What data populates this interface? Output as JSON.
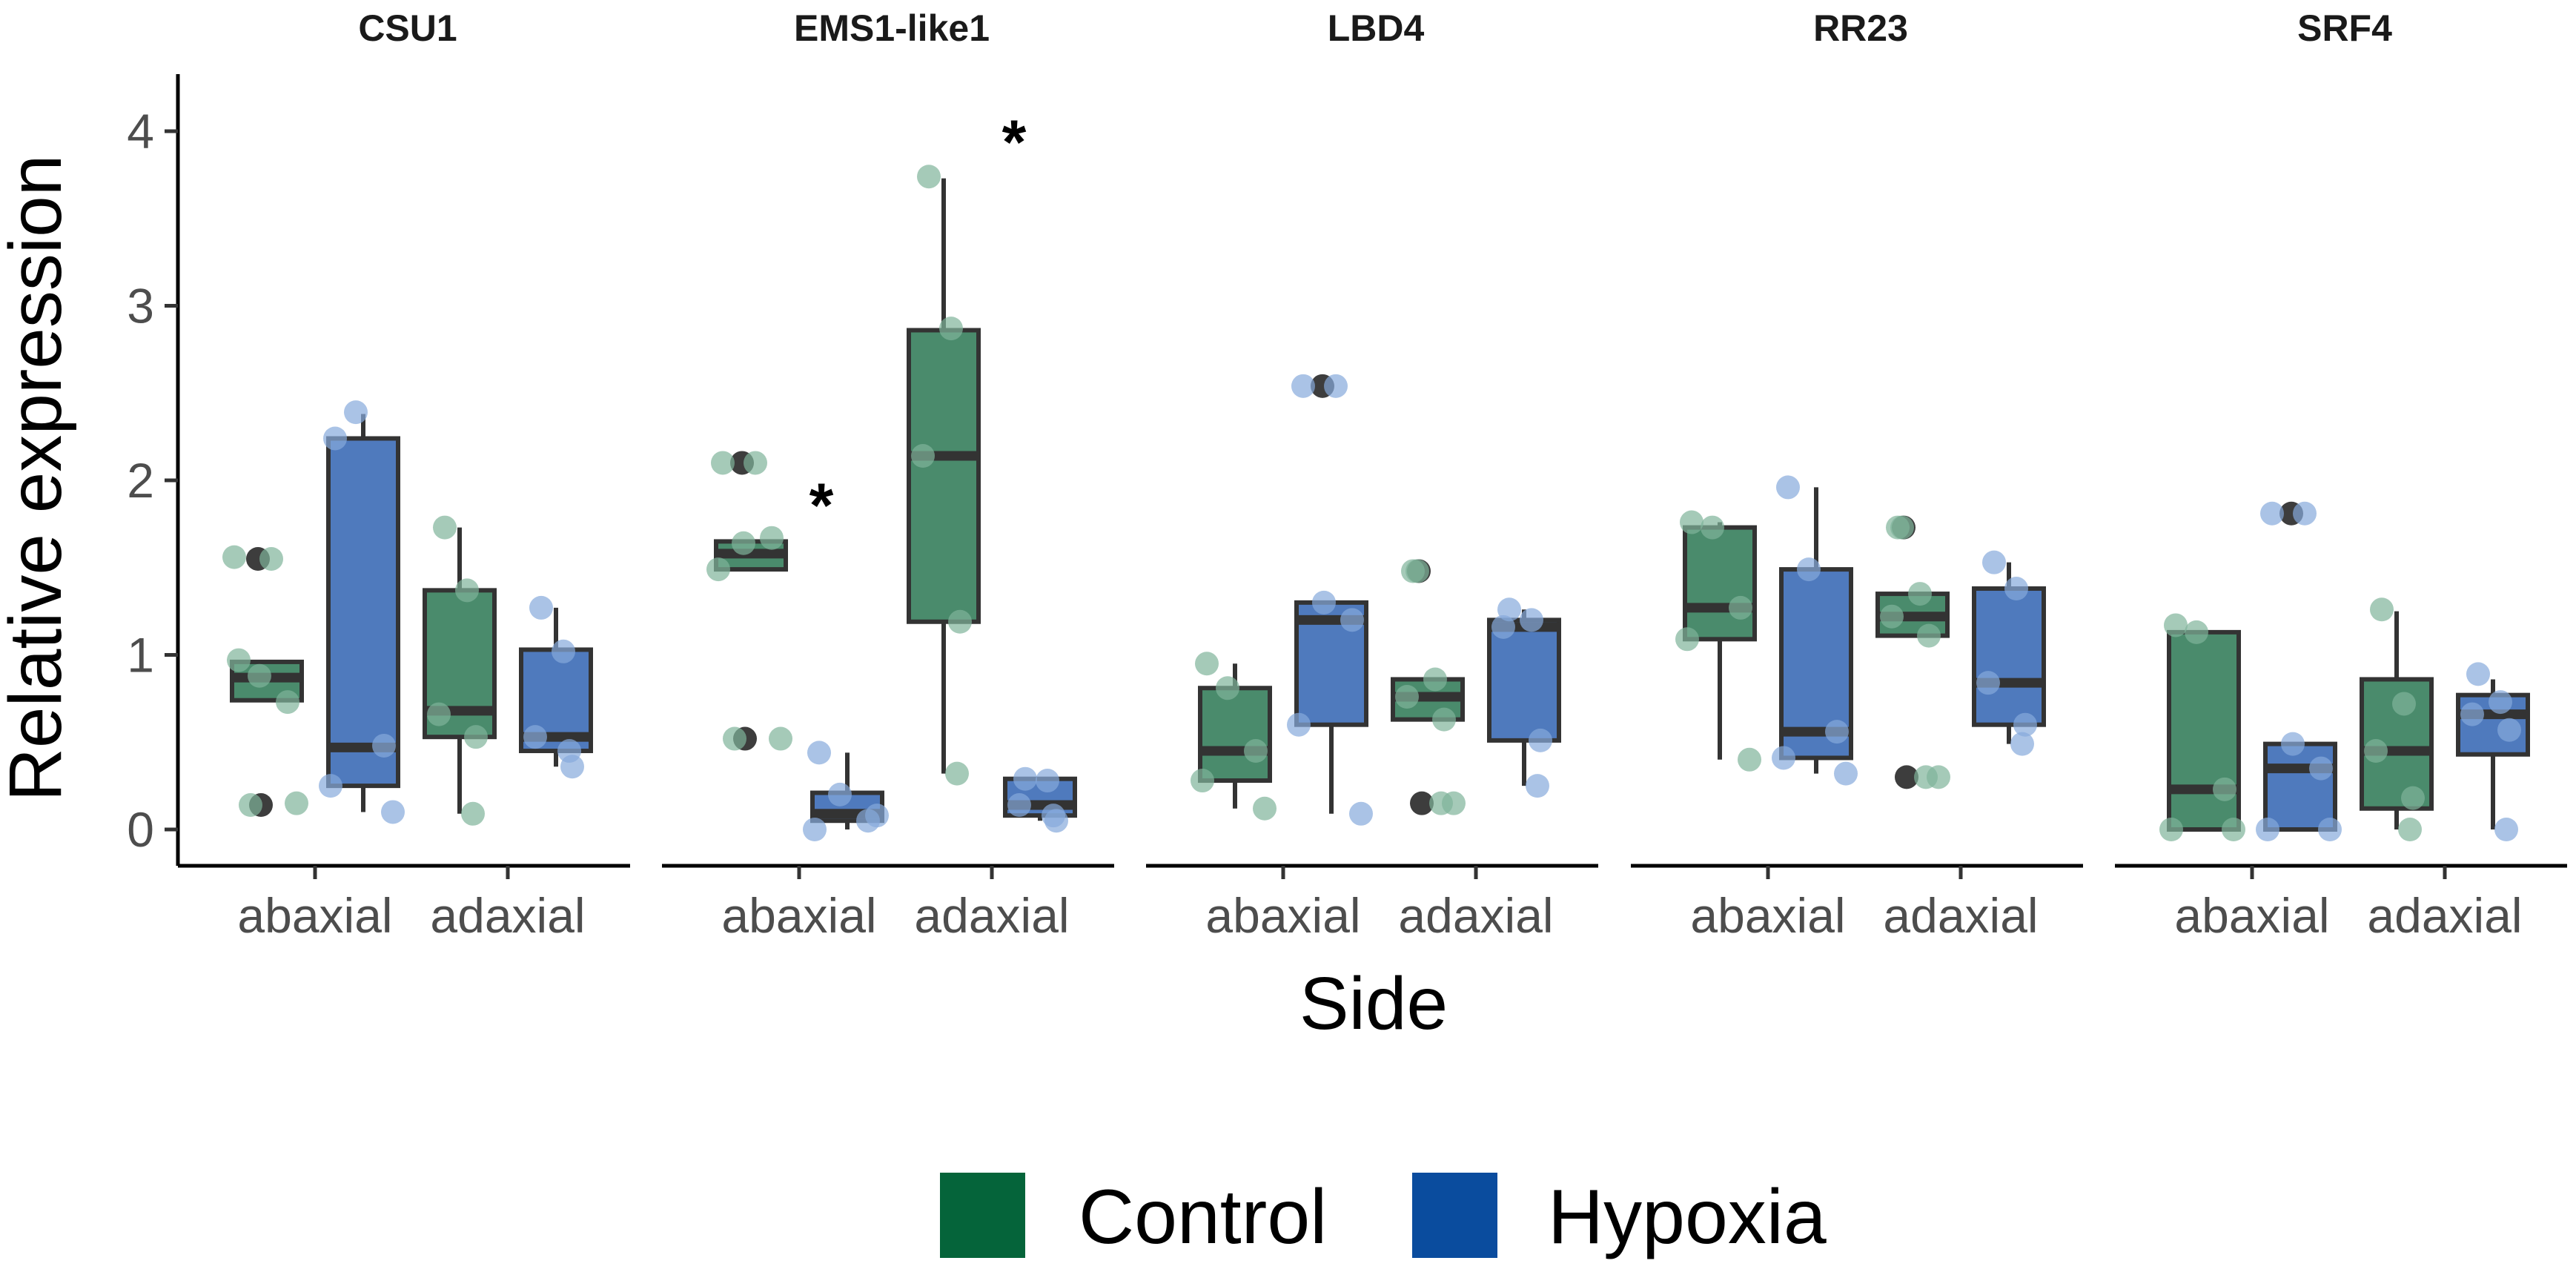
{
  "chart_data": {
    "type": "box",
    "xlabel": "Side",
    "ylabel": "Relative expression",
    "ylim": [
      -0.2,
      4.3
    ],
    "yticks": [
      "0",
      "1",
      "2",
      "3",
      "4"
    ],
    "grid": false,
    "legend": {
      "position": "bottom",
      "entries": [
        {
          "name": "Control",
          "color": "#05643a"
        },
        {
          "name": "Hypoxia",
          "color": "#0a4c9e"
        }
      ]
    },
    "colors": {
      "Control": "#4a8b6c",
      "Hypoxia": "#4f7abd",
      "control_point": "#7fb49a",
      "hypoxia_point": "#86a9dc",
      "outlier": "#333333"
    },
    "facets": [
      {
        "title": "CSU1",
        "groups": [
          {
            "side": "abaxial",
            "treatment": "Control",
            "box": {
              "q1": 0.74,
              "median": 0.87,
              "q3": 0.96,
              "whisker_low": 0.74,
              "whisker_high": 0.96
            },
            "points": [
              0.97,
              0.88,
              0.73,
              1.56,
              0.15,
              1.55,
              0.14
            ],
            "outliers": [
              1.55,
              0.14
            ],
            "annotation": ""
          },
          {
            "side": "abaxial",
            "treatment": "Hypoxia",
            "box": {
              "q1": 0.25,
              "median": 0.47,
              "q3": 2.24,
              "whisker_low": 0.1,
              "whisker_high": 2.38
            },
            "points": [
              2.24,
              2.39,
              0.48,
              0.25,
              0.1
            ],
            "outliers": [],
            "annotation": ""
          },
          {
            "side": "adaxial",
            "treatment": "Control",
            "box": {
              "q1": 0.53,
              "median": 0.68,
              "q3": 1.37,
              "whisker_low": 0.09,
              "whisker_high": 1.73
            },
            "points": [
              1.73,
              1.37,
              0.66,
              0.53,
              0.09
            ],
            "outliers": [],
            "annotation": ""
          },
          {
            "side": "adaxial",
            "treatment": "Hypoxia",
            "box": {
              "q1": 0.45,
              "median": 0.53,
              "q3": 1.03,
              "whisker_low": 0.36,
              "whisker_high": 1.27
            },
            "points": [
              1.27,
              1.02,
              0.53,
              0.36,
              0.45
            ],
            "outliers": [],
            "annotation": ""
          }
        ]
      },
      {
        "title": "EMS1-like1",
        "groups": [
          {
            "side": "abaxial",
            "treatment": "Control",
            "box": {
              "q1": 1.49,
              "median": 1.58,
              "q3": 1.65,
              "whisker_low": 1.49,
              "whisker_high": 1.65
            },
            "points": [
              2.1,
              1.64,
              1.67,
              1.49,
              0.52,
              2.1,
              0.52
            ],
            "outliers": [
              2.1,
              0.52
            ],
            "annotation": "*"
          },
          {
            "side": "abaxial",
            "treatment": "Hypoxia",
            "box": {
              "q1": 0.05,
              "median": 0.09,
              "q3": 0.21,
              "whisker_low": 0.0,
              "whisker_high": 0.44
            },
            "points": [
              0.44,
              0.2,
              0.05,
              0.0,
              0.08
            ],
            "outliers": [],
            "annotation": ""
          },
          {
            "side": "adaxial",
            "treatment": "Control",
            "box": {
              "q1": 1.19,
              "median": 2.14,
              "q3": 2.86,
              "whisker_low": 0.32,
              "whisker_high": 3.73
            },
            "points": [
              3.74,
              2.87,
              2.14,
              1.19,
              0.32
            ],
            "outliers": [],
            "annotation": "*"
          },
          {
            "side": "adaxial",
            "treatment": "Hypoxia",
            "box": {
              "q1": 0.08,
              "median": 0.14,
              "q3": 0.29,
              "whisker_low": 0.05,
              "whisker_high": 0.29
            },
            "points": [
              0.29,
              0.28,
              0.14,
              0.05,
              0.08
            ],
            "outliers": [],
            "annotation": ""
          }
        ]
      },
      {
        "title": "LBD4",
        "groups": [
          {
            "side": "abaxial",
            "treatment": "Control",
            "box": {
              "q1": 0.28,
              "median": 0.45,
              "q3": 0.81,
              "whisker_low": 0.12,
              "whisker_high": 0.95
            },
            "points": [
              0.95,
              0.81,
              0.45,
              0.28,
              0.12
            ],
            "outliers": [],
            "annotation": ""
          },
          {
            "side": "abaxial",
            "treatment": "Hypoxia",
            "box": {
              "q1": 0.6,
              "median": 1.2,
              "q3": 1.3,
              "whisker_low": 0.09,
              "whisker_high": 1.3
            },
            "points": [
              2.54,
              1.3,
              1.2,
              0.6,
              0.09,
              2.54
            ],
            "outliers": [
              2.54
            ],
            "annotation": ""
          },
          {
            "side": "adaxial",
            "treatment": "Control",
            "box": {
              "q1": 0.63,
              "median": 0.76,
              "q3": 0.86,
              "whisker_low": 0.63,
              "whisker_high": 0.86
            },
            "points": [
              1.48,
              0.86,
              0.76,
              0.63,
              0.15,
              1.48,
              0.15
            ],
            "outliers": [
              1.48,
              0.15
            ],
            "annotation": ""
          },
          {
            "side": "adaxial",
            "treatment": "Hypoxia",
            "box": {
              "q1": 0.51,
              "median": 1.16,
              "q3": 1.2,
              "whisker_low": 0.25,
              "whisker_high": 1.26
            },
            "points": [
              1.26,
              1.2,
              1.16,
              0.51,
              0.25
            ],
            "outliers": [],
            "annotation": ""
          }
        ]
      },
      {
        "title": "RR23",
        "groups": [
          {
            "side": "abaxial",
            "treatment": "Control",
            "box": {
              "q1": 1.09,
              "median": 1.27,
              "q3": 1.73,
              "whisker_low": 0.4,
              "whisker_high": 1.76
            },
            "points": [
              1.76,
              1.73,
              1.27,
              1.09,
              0.4
            ],
            "outliers": [],
            "annotation": ""
          },
          {
            "side": "abaxial",
            "treatment": "Hypoxia",
            "box": {
              "q1": 0.41,
              "median": 0.56,
              "q3": 1.49,
              "whisker_low": 0.32,
              "whisker_high": 1.96
            },
            "points": [
              1.96,
              1.49,
              0.56,
              0.41,
              0.32
            ],
            "outliers": [],
            "annotation": ""
          },
          {
            "side": "adaxial",
            "treatment": "Control",
            "box": {
              "q1": 1.11,
              "median": 1.22,
              "q3": 1.35,
              "whisker_low": 1.11,
              "whisker_high": 1.35
            },
            "points": [
              1.73,
              1.35,
              1.22,
              1.11,
              0.3,
              1.73,
              0.3
            ],
            "outliers": [
              1.73,
              0.3
            ],
            "annotation": ""
          },
          {
            "side": "adaxial",
            "treatment": "Hypoxia",
            "box": {
              "q1": 0.6,
              "median": 0.84,
              "q3": 1.38,
              "whisker_low": 0.49,
              "whisker_high": 1.53
            },
            "points": [
              1.53,
              1.38,
              0.84,
              0.6,
              0.49
            ],
            "outliers": [],
            "annotation": ""
          }
        ]
      },
      {
        "title": "SRF4",
        "groups": [
          {
            "side": "abaxial",
            "treatment": "Control",
            "box": {
              "q1": 0.0,
              "median": 0.23,
              "q3": 1.13,
              "whisker_low": 0.0,
              "whisker_high": 1.13
            },
            "points": [
              1.17,
              1.13,
              0.23,
              0.0,
              0.0
            ],
            "outliers": [],
            "annotation": ""
          },
          {
            "side": "abaxial",
            "treatment": "Hypoxia",
            "box": {
              "q1": 0.0,
              "median": 0.35,
              "q3": 0.49,
              "whisker_low": 0.0,
              "whisker_high": 0.49
            },
            "points": [
              1.81,
              0.49,
              0.35,
              0.0,
              0.0,
              1.81
            ],
            "outliers": [
              1.81
            ],
            "annotation": ""
          },
          {
            "side": "adaxial",
            "treatment": "Control",
            "box": {
              "q1": 0.12,
              "median": 0.45,
              "q3": 0.86,
              "whisker_low": 0.0,
              "whisker_high": 1.25
            },
            "points": [
              1.26,
              0.72,
              0.45,
              0.18,
              0.0
            ],
            "outliers": [],
            "annotation": ""
          },
          {
            "side": "adaxial",
            "treatment": "Hypoxia",
            "box": {
              "q1": 0.43,
              "median": 0.66,
              "q3": 0.77,
              "whisker_low": 0.0,
              "whisker_high": 0.86
            },
            "points": [
              0.89,
              0.73,
              0.66,
              0.57,
              0.0
            ],
            "outliers": [],
            "annotation": ""
          }
        ]
      }
    ]
  }
}
